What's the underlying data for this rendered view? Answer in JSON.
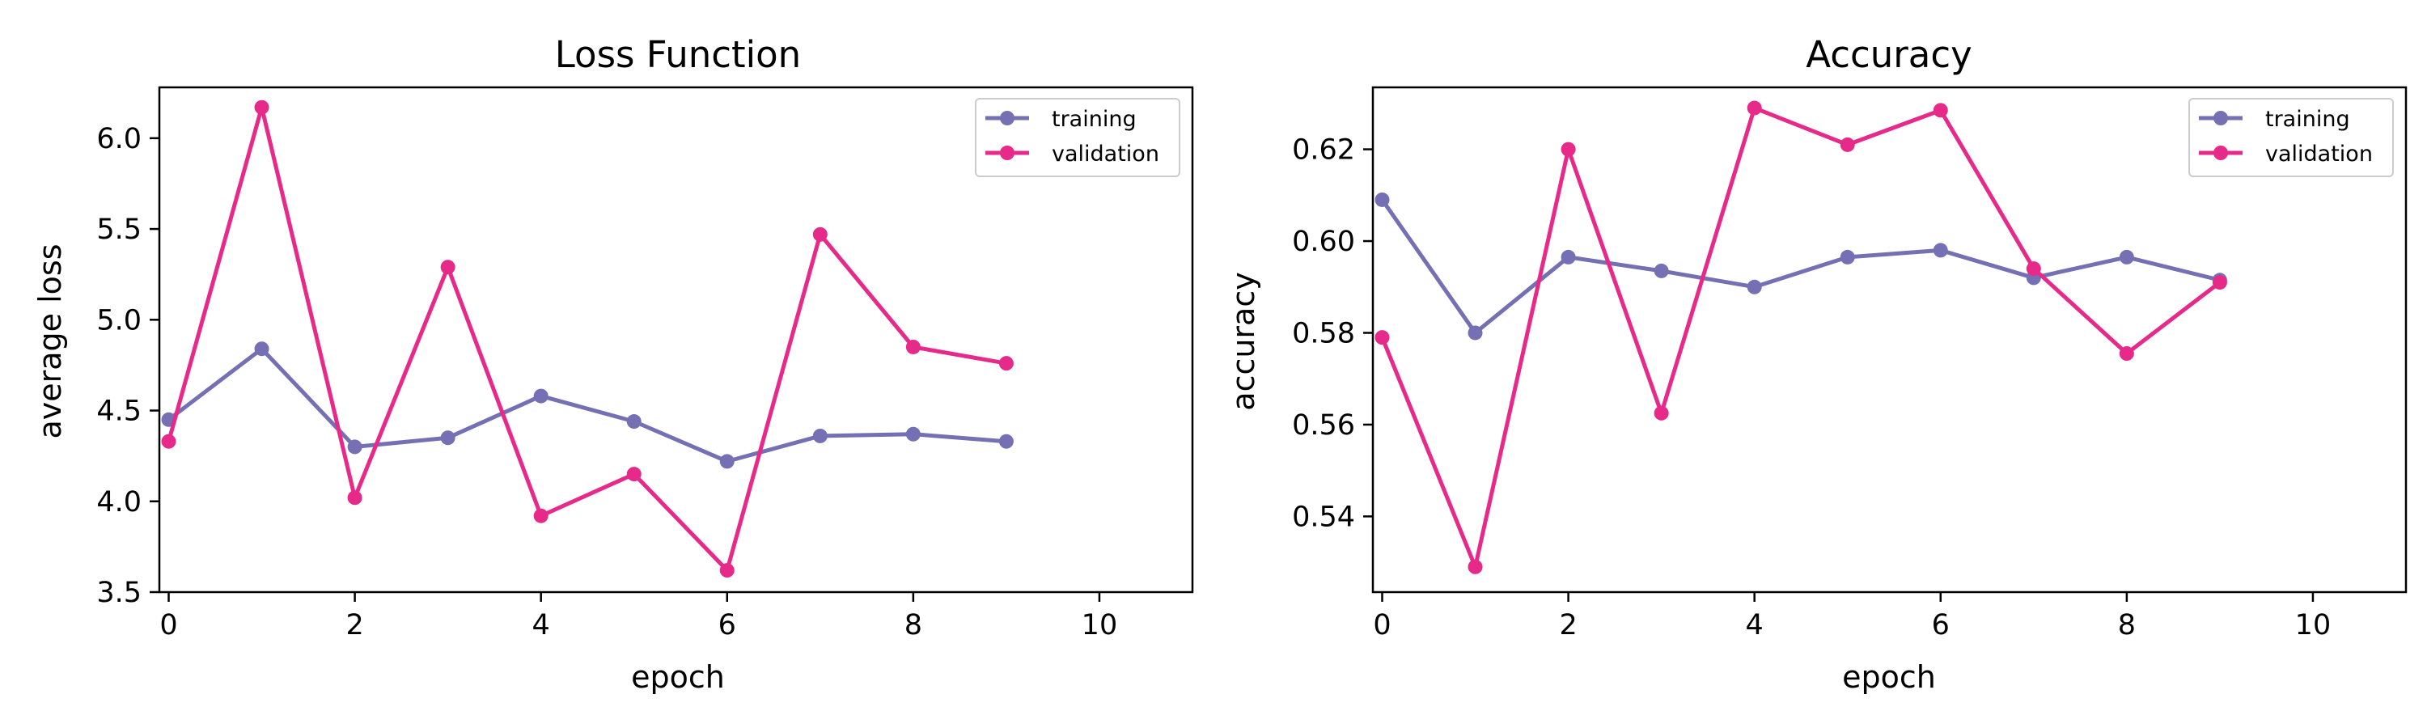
{
  "chart_data": [
    {
      "type": "line",
      "title": "Loss Function",
      "xlabel": "epoch",
      "ylabel": "average loss",
      "xlim": [
        -0.1,
        11
      ],
      "ylim": [
        3.5,
        6.28
      ],
      "xticks": [
        0,
        2,
        4,
        6,
        8,
        10
      ],
      "xtick_labels": [
        "0",
        "2",
        "4",
        "6",
        "8",
        "10"
      ],
      "yticks": [
        3.5,
        4.0,
        4.5,
        5.0,
        5.5,
        6.0
      ],
      "ytick_labels": [
        "3.5",
        "4.0",
        "4.5",
        "5.0",
        "5.5",
        "6.0"
      ],
      "grid": false,
      "legend": "top-right",
      "x": [
        0,
        1,
        2,
        3,
        4,
        5,
        6,
        7,
        8,
        9
      ],
      "series": [
        {
          "name": "training",
          "color": "#7570b3",
          "values": [
            4.45,
            4.84,
            4.3,
            4.35,
            4.58,
            4.44,
            4.22,
            4.36,
            4.37,
            4.33
          ]
        },
        {
          "name": "validation",
          "color": "#e7298a",
          "values": [
            4.33,
            6.17,
            4.02,
            5.29,
            3.92,
            4.15,
            3.62,
            5.47,
            4.85,
            4.76
          ]
        }
      ]
    },
    {
      "type": "line",
      "title": "Accuracy",
      "xlabel": "epoch",
      "ylabel": "accuracy",
      "xlim": [
        -0.1,
        11
      ],
      "ylim": [
        0.5235,
        0.6335
      ],
      "xticks": [
        0,
        2,
        4,
        6,
        8,
        10
      ],
      "xtick_labels": [
        "0",
        "2",
        "4",
        "6",
        "8",
        "10"
      ],
      "yticks": [
        0.54,
        0.56,
        0.58,
        0.6,
        0.62
      ],
      "ytick_labels": [
        "0.54",
        "0.56",
        "0.58",
        "0.60",
        "0.62"
      ],
      "grid": false,
      "legend": "top-right",
      "x": [
        0,
        1,
        2,
        3,
        4,
        5,
        6,
        7,
        8,
        9
      ],
      "series": [
        {
          "name": "training",
          "color": "#7570b3",
          "values": [
            0.609,
            0.58,
            0.5965,
            0.5935,
            0.59,
            0.5965,
            0.598,
            0.592,
            0.5965,
            0.5915
          ]
        },
        {
          "name": "validation",
          "color": "#e7298a",
          "values": [
            0.579,
            0.529,
            0.62,
            0.5625,
            0.629,
            0.621,
            0.6285,
            0.594,
            0.5755,
            0.591
          ]
        }
      ]
    }
  ]
}
